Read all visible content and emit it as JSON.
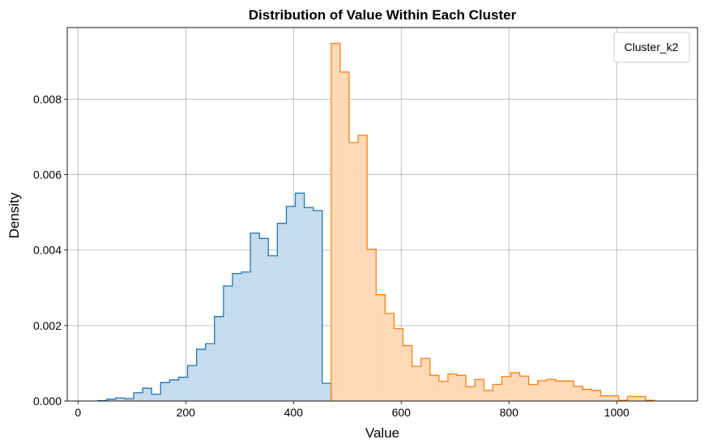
{
  "chart_data": {
    "type": "histogram",
    "title": "Distribution of Value Within Each Cluster",
    "xlabel": "Value",
    "ylabel": "Density",
    "xlim": [
      -20,
      1150
    ],
    "ylim": [
      0,
      0.0099
    ],
    "xticks": [
      0,
      200,
      400,
      600,
      800,
      1000
    ],
    "yticks": [
      0.0,
      0.002,
      0.004,
      0.006,
      0.008
    ],
    "ytick_labels": [
      "0.000",
      "0.002",
      "0.004",
      "0.006",
      "0.008"
    ],
    "grid": true,
    "bin_width": 16.667,
    "legend": {
      "title": "Cluster_k2",
      "placement": "top-right",
      "entries": []
    },
    "series": [
      {
        "color": "#1f77b4",
        "fill": "#c6dbed",
        "x_start": 36.7,
        "values": [
          1e-05,
          5e-05,
          8e-05,
          6e-05,
          0.00022,
          0.00034,
          0.00018,
          0.00049,
          0.00056,
          0.00063,
          0.00094,
          0.00137,
          0.00152,
          0.00224,
          0.00305,
          0.00338,
          0.00342,
          0.00445,
          0.00431,
          0.00385,
          0.00471,
          0.00516,
          0.00551,
          0.00513,
          0.00505,
          0.00047
        ]
      },
      {
        "color": "#ff7f0e",
        "fill": "#fdd9b8",
        "x_start": 470.0,
        "values": [
          0.00948,
          0.00872,
          0.00685,
          0.00704,
          0.00402,
          0.00282,
          0.00232,
          0.00192,
          0.00147,
          0.00092,
          0.00113,
          0.00068,
          0.00052,
          0.00072,
          0.00068,
          0.00038,
          0.00057,
          0.00028,
          0.00044,
          0.00065,
          0.00075,
          0.00066,
          0.00044,
          0.00054,
          0.00057,
          0.00053,
          0.00053,
          0.00039,
          0.00031,
          0.00028,
          0.00014,
          0.00014,
          2e-05,
          0.00012,
          0.00012,
          2e-05
        ]
      }
    ]
  }
}
